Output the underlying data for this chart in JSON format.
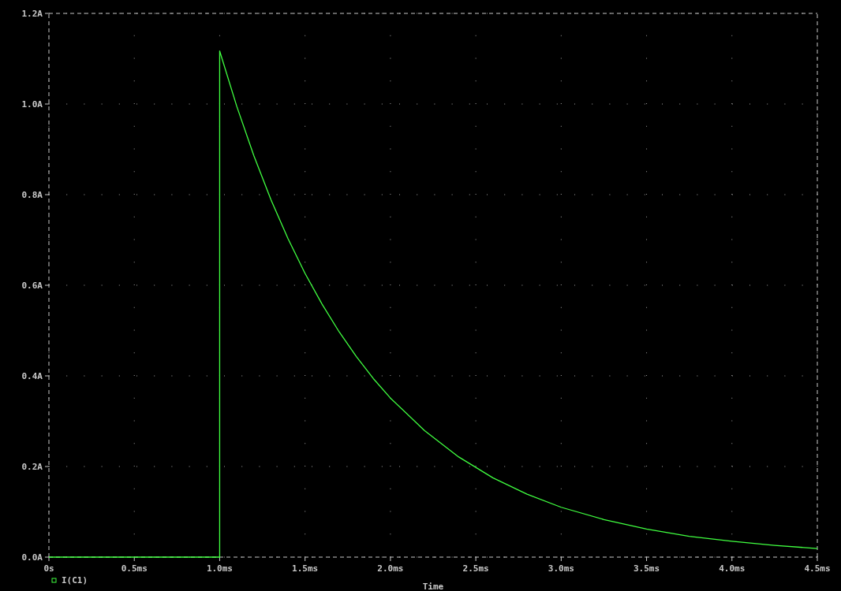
{
  "chart_data": {
    "type": "line",
    "xlabel": "Time",
    "x": [
      0,
      1.0,
      1.0,
      1.1,
      1.2,
      1.3,
      1.4,
      1.5,
      1.6,
      1.7,
      1.8,
      1.9,
      2.0,
      2.2,
      2.4,
      2.6,
      2.8,
      3.0,
      3.25,
      3.5,
      3.75,
      4.0,
      4.25,
      4.5
    ],
    "series": [
      {
        "name": "I(C1)",
        "color": "#40ff40",
        "values": [
          0,
          0,
          1.117,
          0.995,
          0.886,
          0.789,
          0.703,
          0.626,
          0.558,
          0.497,
          0.443,
          0.394,
          0.351,
          0.279,
          0.221,
          0.175,
          0.139,
          0.11,
          0.083,
          0.062,
          0.046,
          0.035,
          0.026,
          0.019
        ]
      }
    ],
    "xlim": [
      0,
      4.5
    ],
    "ylim": [
      0,
      1.2
    ],
    "xticks": [
      {
        "value": 0,
        "label": "0s"
      },
      {
        "value": 0.5,
        "label": "0.5ms"
      },
      {
        "value": 1,
        "label": "1.0ms"
      },
      {
        "value": 1.5,
        "label": "1.5ms"
      },
      {
        "value": 2,
        "label": "2.0ms"
      },
      {
        "value": 2.5,
        "label": "2.5ms"
      },
      {
        "value": 3,
        "label": "3.0ms"
      },
      {
        "value": 3.5,
        "label": "3.5ms"
      },
      {
        "value": 4,
        "label": "4.0ms"
      },
      {
        "value": 4.5,
        "label": "4.5ms"
      }
    ],
    "yticks": [
      {
        "value": 0,
        "label": "0.0A"
      },
      {
        "value": 0.2,
        "label": "0.2A"
      },
      {
        "value": 0.4,
        "label": "0.4A"
      },
      {
        "value": 0.6,
        "label": "0.6A"
      },
      {
        "value": 0.8,
        "label": "0.8A"
      },
      {
        "value": 1.0,
        "label": "1.0A"
      },
      {
        "value": 1.2,
        "label": "1.2A"
      }
    ],
    "grid": true,
    "legend": "bottom left",
    "marker": "none",
    "line_style": "solid"
  }
}
